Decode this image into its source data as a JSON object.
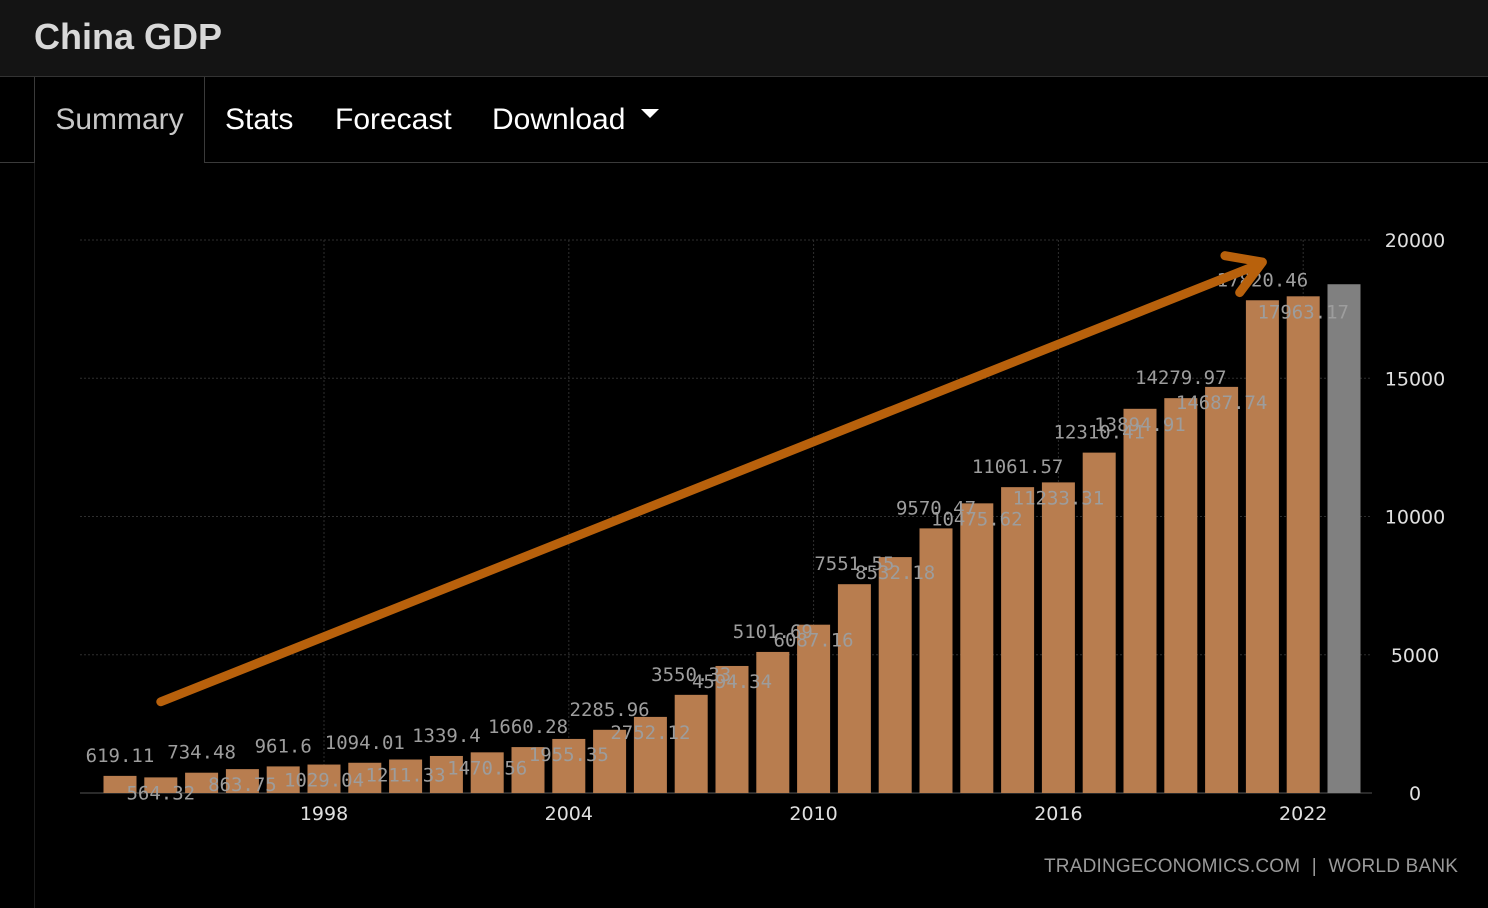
{
  "header": {
    "title": "China GDP"
  },
  "tabs": [
    {
      "label": "Summary",
      "active": true
    },
    {
      "label": "Stats",
      "active": false
    },
    {
      "label": "Forecast",
      "active": false
    },
    {
      "label": "Download",
      "active": false,
      "dropdown": true
    }
  ],
  "source": {
    "site": "TRADINGECONOMICS.COM",
    "separator": "|",
    "provider": "WORLD BANK"
  },
  "colors": {
    "bar": "#b87d4f",
    "forecast_bar": "#808080",
    "arrow": "#b8610c",
    "grid": "#2e2e2e",
    "label": "#9d9d9d",
    "axis_text": "#e0e0e0"
  },
  "chart_data": {
    "type": "bar",
    "x": [
      1993,
      1994,
      1995,
      1996,
      1997,
      1998,
      1999,
      2000,
      2001,
      2002,
      2003,
      2004,
      2005,
      2006,
      2007,
      2008,
      2009,
      2010,
      2011,
      2012,
      2013,
      2014,
      2015,
      2016,
      2017,
      2018,
      2019,
      2020,
      2021,
      2022,
      2023
    ],
    "values": [
      619.11,
      564.32,
      734.48,
      863.75,
      961.6,
      1029.04,
      1094.01,
      1211.33,
      1339.4,
      1470.56,
      1660.28,
      1955.35,
      2285.96,
      2752.12,
      3550.33,
      4594.34,
      5101.69,
      6087.16,
      7551.55,
      8532.18,
      9570.47,
      10475.62,
      11061.57,
      11233.31,
      12310.41,
      13894.91,
      14279.97,
      14687.74,
      17820.46,
      17963.17,
      18400
    ],
    "value_labels": [
      "619.11",
      "564.32",
      "734.48",
      "863.75",
      "961.6",
      "1029.04",
      "1094.01",
      "1211.33",
      "1339.4",
      "1470.56",
      "1660.28",
      "1955.35",
      "2285.96",
      "2752.12",
      "3550.33",
      "4594.34",
      "5101.69",
      "6087.16",
      "7551.55",
      "8532.18",
      "9570.47",
      "10475.62",
      "11061.57",
      "11233.31",
      "12310.41",
      "13894.91",
      "14279.97",
      "14687.74",
      "17820.46",
      "17963.17",
      ""
    ],
    "forecast_index": 30,
    "x_ticks": [
      "1998",
      "2004",
      "2010",
      "2016",
      "2022"
    ],
    "y_ticks": [
      "20000",
      "15000",
      "10000",
      "5000",
      "0"
    ],
    "ylim": [
      0,
      20000
    ],
    "y_axis_side": "right",
    "grid": true,
    "annotation": {
      "type": "trend-arrow",
      "from_x": 1994,
      "from_y": 3300,
      "to_x": 2021,
      "to_y": 19200
    }
  }
}
